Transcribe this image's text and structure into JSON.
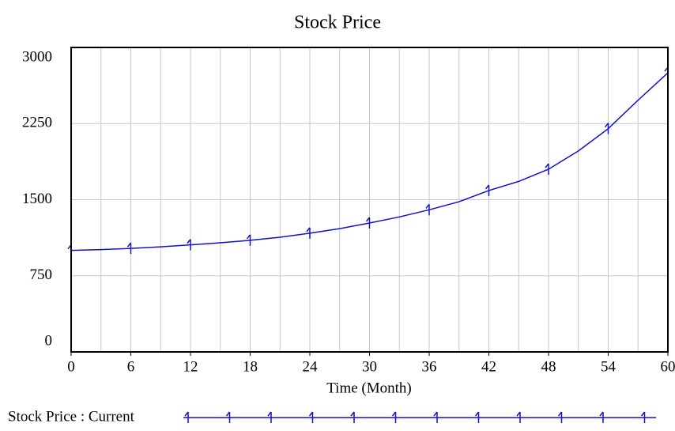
{
  "chart_data": {
    "type": "line",
    "title": "Stock Price",
    "x_label": "Time (Month)",
    "x": [
      0,
      3,
      6,
      9,
      12,
      15,
      18,
      21,
      24,
      27,
      30,
      33,
      36,
      39,
      42,
      45,
      48,
      51,
      54,
      57,
      60
    ],
    "series": [
      {
        "name": "Stock Price : Current",
        "color": "#1010d0",
        "values": [
          1000,
          1008,
          1020,
          1035,
          1055,
          1075,
          1100,
          1130,
          1170,
          1215,
          1270,
          1330,
          1400,
          1480,
          1590,
          1680,
          1800,
          1980,
          2200,
          2480,
          2750
        ]
      }
    ],
    "xlim": [
      0,
      60
    ],
    "xticks": [
      0,
      6,
      12,
      18,
      24,
      30,
      36,
      42,
      48,
      54,
      60
    ],
    "xgrid": [
      0,
      3,
      6,
      9,
      12,
      15,
      18,
      21,
      24,
      27,
      30,
      33,
      36,
      39,
      42,
      45,
      48,
      51,
      54,
      57,
      60
    ],
    "ylim": [
      0,
      3000
    ],
    "yticks": [
      0,
      750,
      1500,
      2250,
      3000
    ],
    "grid": true
  }
}
